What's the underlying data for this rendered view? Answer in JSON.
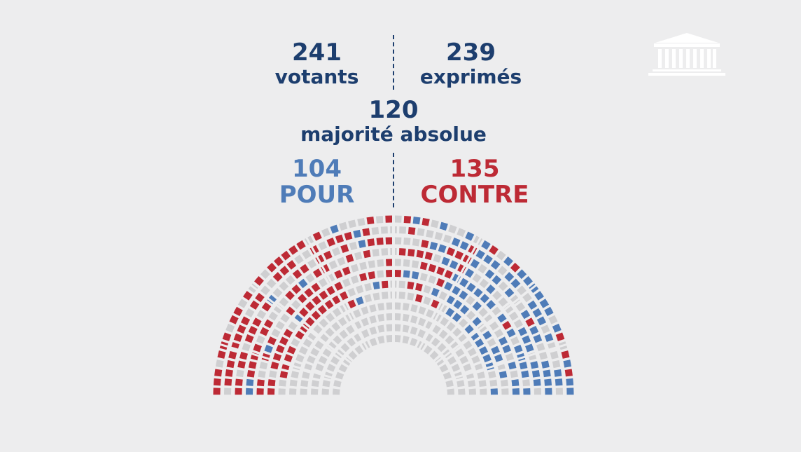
{
  "stats": {
    "votants": {
      "value": "241",
      "label": "votants"
    },
    "exprimes": {
      "value": "239",
      "label": "exprimés"
    },
    "majorite": {
      "value": "120",
      "label": "majorité absolue"
    },
    "pour": {
      "value": "104",
      "label": "POUR"
    },
    "contre": {
      "value": "135",
      "label": "CONTRE"
    }
  },
  "colors": {
    "navy": "#1d3e6e",
    "pour": "#4f7cb8",
    "contre": "#bd2a35",
    "absent": "#cfcfd1",
    "background": "#ededee"
  },
  "logo": {
    "icon": "assemblee-nationale-building-icon"
  },
  "chart_data": {
    "type": "hemicycle",
    "series": [
      {
        "name": "POUR",
        "value": 104
      },
      {
        "name": "CONTRE",
        "value": 135
      }
    ],
    "votants": 241,
    "exprimes": 239,
    "majorite_absolue": 120
  }
}
